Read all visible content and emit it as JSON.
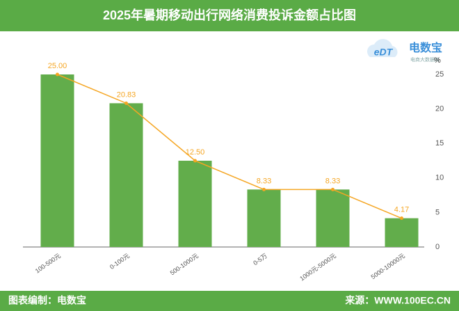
{
  "chart_data": {
    "type": "bar",
    "title": "2025年暑期移动出行网络消费投诉金额占比图",
    "categories": [
      "100-500元",
      "0-100元",
      "500-1000元",
      "0-5万",
      "1000元-5000元",
      "5000-10000元"
    ],
    "values": [
      25,
      20.83,
      12.5,
      8.33,
      8.33,
      4.17
    ],
    "value_labels": [
      "25.00",
      "20.83",
      "12.50",
      "8.33",
      "8.33",
      "4.17"
    ],
    "color": "#62ad4b",
    "line_color": "#f5a623",
    "y_unit": "%",
    "ylim": [
      0,
      25
    ],
    "yticks": [
      0,
      5,
      10,
      15,
      20,
      25
    ],
    "grid": false
  },
  "logo": {
    "mark": "eDT",
    "name": "电数宝",
    "tagline": "电商大数据库"
  },
  "footer": {
    "left": "图表编制：电数宝",
    "right": "来源：WWW.100EC.CN"
  }
}
